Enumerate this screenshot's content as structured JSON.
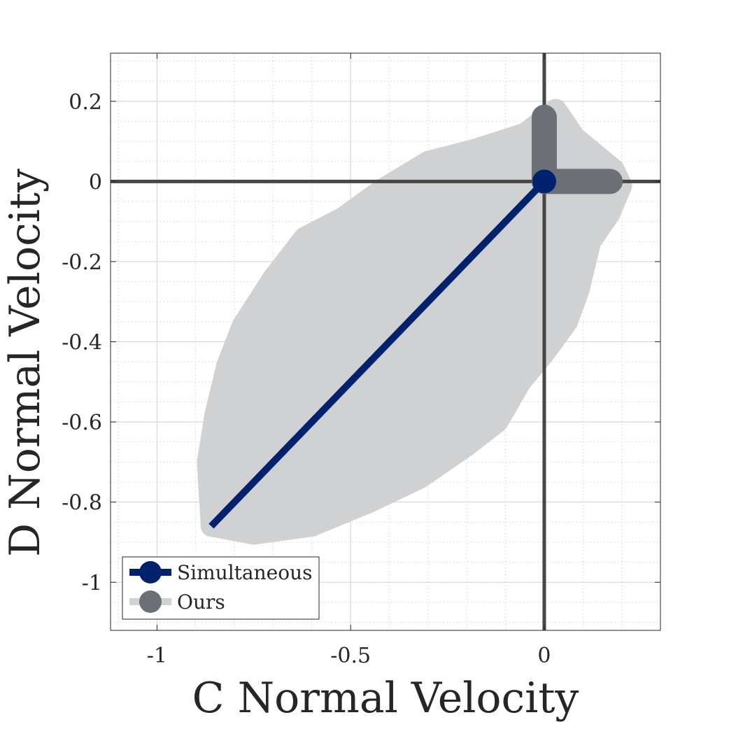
{
  "chart_data": {
    "type": "scatter",
    "xlabel": "C Normal Velocity",
    "ylabel": "D Normal Velocity",
    "xlim": [
      -1.12,
      0.3
    ],
    "ylim": [
      -1.12,
      0.32
    ],
    "x_ticks": [
      {
        "value": -1,
        "label": "-1"
      },
      {
        "value": -0.5,
        "label": "-0.5"
      },
      {
        "value": 0,
        "label": "0"
      }
    ],
    "y_ticks": [
      {
        "value": 0.2,
        "label": "0.2"
      },
      {
        "value": 0,
        "label": "0"
      },
      {
        "value": -0.2,
        "label": "-0.2"
      },
      {
        "value": -0.4,
        "label": "-0.4"
      },
      {
        "value": -0.6,
        "label": "-0.6"
      },
      {
        "value": -0.8,
        "label": "-0.8"
      },
      {
        "value": -1,
        "label": "-1"
      }
    ],
    "grid": "major and minor",
    "reference_lines": {
      "x": 0,
      "y": 0
    },
    "ours_region": [
      [
        -0.86,
        -0.86
      ],
      [
        -0.87,
        -0.7
      ],
      [
        -0.85,
        -0.58
      ],
      [
        -0.82,
        -0.46
      ],
      [
        -0.78,
        -0.36
      ],
      [
        -0.7,
        -0.24
      ],
      [
        -0.62,
        -0.14
      ],
      [
        -0.52,
        -0.09
      ],
      [
        -0.42,
        -0.02
      ],
      [
        -0.3,
        0.05
      ],
      [
        -0.18,
        0.08
      ],
      [
        -0.05,
        0.12
      ],
      [
        0.03,
        0.18
      ],
      [
        0.08,
        0.11
      ],
      [
        0.18,
        0.03
      ],
      [
        0.2,
        -0.01
      ],
      [
        0.17,
        -0.08
      ],
      [
        0.12,
        -0.15
      ],
      [
        0.09,
        -0.27
      ],
      [
        0.06,
        -0.35
      ],
      [
        0.0,
        -0.43
      ],
      [
        -0.06,
        -0.5
      ],
      [
        -0.12,
        -0.6
      ],
      [
        -0.2,
        -0.66
      ],
      [
        -0.32,
        -0.74
      ],
      [
        -0.45,
        -0.8
      ],
      [
        -0.6,
        -0.86
      ],
      [
        -0.75,
        -0.88
      ]
    ],
    "series": [
      {
        "name": "Simultaneous",
        "color": "#00216e",
        "points": [
          [
            -0.86,
            -0.86
          ],
          [
            0,
            0
          ]
        ],
        "marker_at": [
          0,
          0
        ]
      },
      {
        "name": "Ours",
        "color": "#6d6f76",
        "fill_color": "#d0d1d3",
        "segments": [
          [
            [
              0,
              0
            ],
            [
              0,
              0.16
            ]
          ],
          [
            [
              0,
              0
            ],
            [
              0.17,
              0
            ]
          ]
        ]
      }
    ],
    "legend": {
      "position": "bottom-left",
      "entries": [
        {
          "label": "Simultaneous",
          "line_color": "#00216e",
          "marker_color": "#00216e"
        },
        {
          "label": "Ours",
          "line_color": "#d0d1d3",
          "marker_color": "#6d6f76"
        }
      ]
    }
  }
}
